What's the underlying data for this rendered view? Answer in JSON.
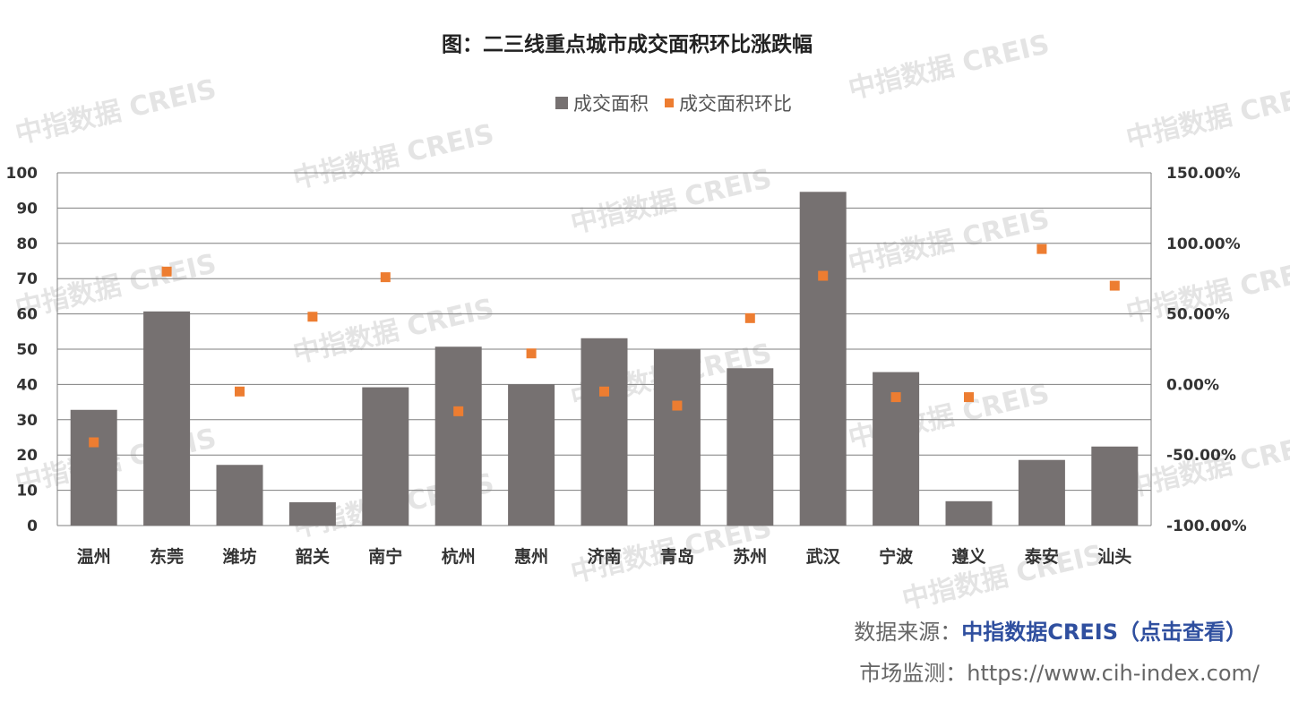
{
  "title": "图：二三线重点城市成交面积环比涨跌幅",
  "legend": {
    "bar_label": "成交面积",
    "dot_label": "成交面积环比"
  },
  "source": {
    "prefix": "数据来源：",
    "brand": "中指数据CREIS（点击查看）"
  },
  "monitor": "市场监测：https://www.cih-index.com/",
  "watermark": "中指数据 CREIS",
  "colors": {
    "bar": "#767171",
    "dot": "#ed7d31",
    "grid": "#7f7f7f"
  },
  "chart_data": {
    "type": "bar",
    "categories": [
      "温州",
      "东莞",
      "潍坊",
      "韶关",
      "南宁",
      "杭州",
      "惠州",
      "济南",
      "青岛",
      "苏州",
      "武汉",
      "宁波",
      "遵义",
      "泰安",
      "汕头"
    ],
    "series": [
      {
        "name": "成交面积",
        "type": "bar",
        "axis": "left",
        "values": [
          32.8,
          60.7,
          17.2,
          6.6,
          39.2,
          50.7,
          40.0,
          53.1,
          49.9,
          44.6,
          94.6,
          43.5,
          6.9,
          18.6,
          22.4
        ]
      },
      {
        "name": "成交面积环比",
        "type": "scatter",
        "axis": "right",
        "values": [
          -41.0,
          80.0,
          -5.0,
          48.0,
          76.0,
          -19.0,
          22.0,
          -5.0,
          -15.0,
          47.0,
          77.0,
          -9.0,
          -9.0,
          96.0,
          70.0
        ]
      }
    ],
    "y_left": {
      "min": 0,
      "max": 100,
      "step": 10,
      "ticks": [
        "0",
        "10",
        "20",
        "30",
        "40",
        "50",
        "60",
        "70",
        "80",
        "90",
        "100"
      ]
    },
    "y_right": {
      "min": -100,
      "max": 150,
      "step": 50,
      "ticks": [
        "-100.00%",
        "-50.00%",
        "0.00%",
        "50.00%",
        "100.00%",
        "150.00%"
      ]
    },
    "grid": true,
    "legend_position": "top-right"
  }
}
